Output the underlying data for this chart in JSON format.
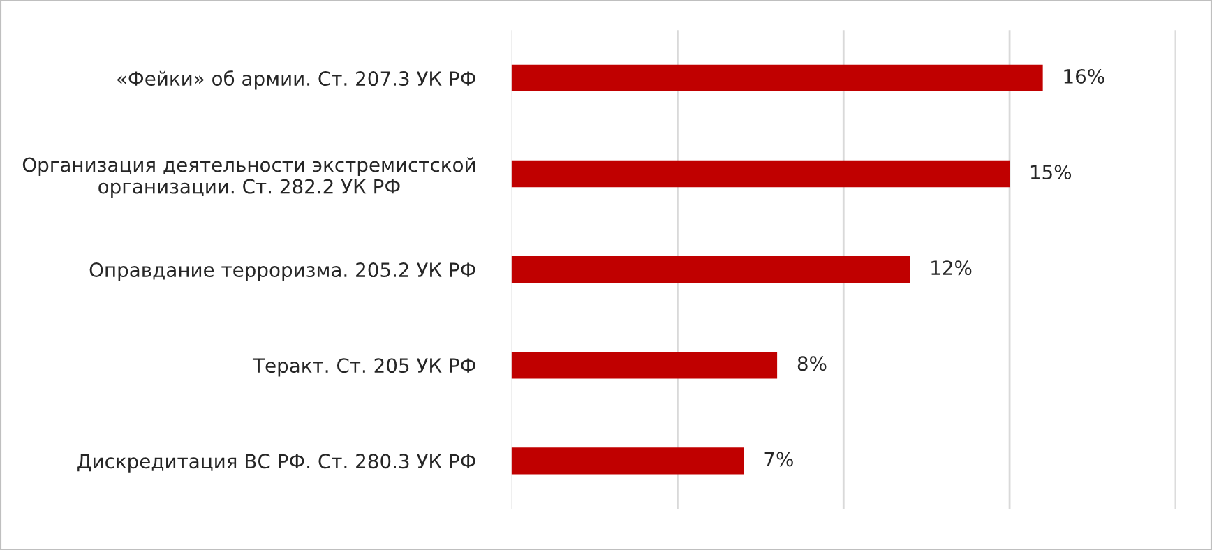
{
  "chart_data": {
    "type": "bar",
    "orientation": "horizontal",
    "categories": [
      "«Фейки» об армии. Ст. 207.3 УК РФ",
      "Организация деятельности экстремистской\nорганизации. Ст. 282.2 УК РФ",
      "Оправдание терроризма. 205.2 УК РФ",
      "Теракт. Ст. 205 УК РФ",
      "Дискредитация ВС РФ. Ст. 280.3 УК РФ"
    ],
    "values": [
      16,
      15,
      12,
      8,
      7
    ],
    "value_labels": [
      "16%",
      "15%",
      "12%",
      "8%",
      "7%"
    ],
    "color": "#c00000",
    "xlim": [
      0,
      20
    ],
    "xticks": [
      {
        "value": 0,
        "label": null
      },
      {
        "value": 5,
        "label": null
      },
      {
        "value": 10,
        "label": null
      },
      {
        "value": 15,
        "label": null
      },
      {
        "value": 20,
        "label": null
      }
    ],
    "tick_labels": "y",
    "grid": "x",
    "legend": false
  }
}
